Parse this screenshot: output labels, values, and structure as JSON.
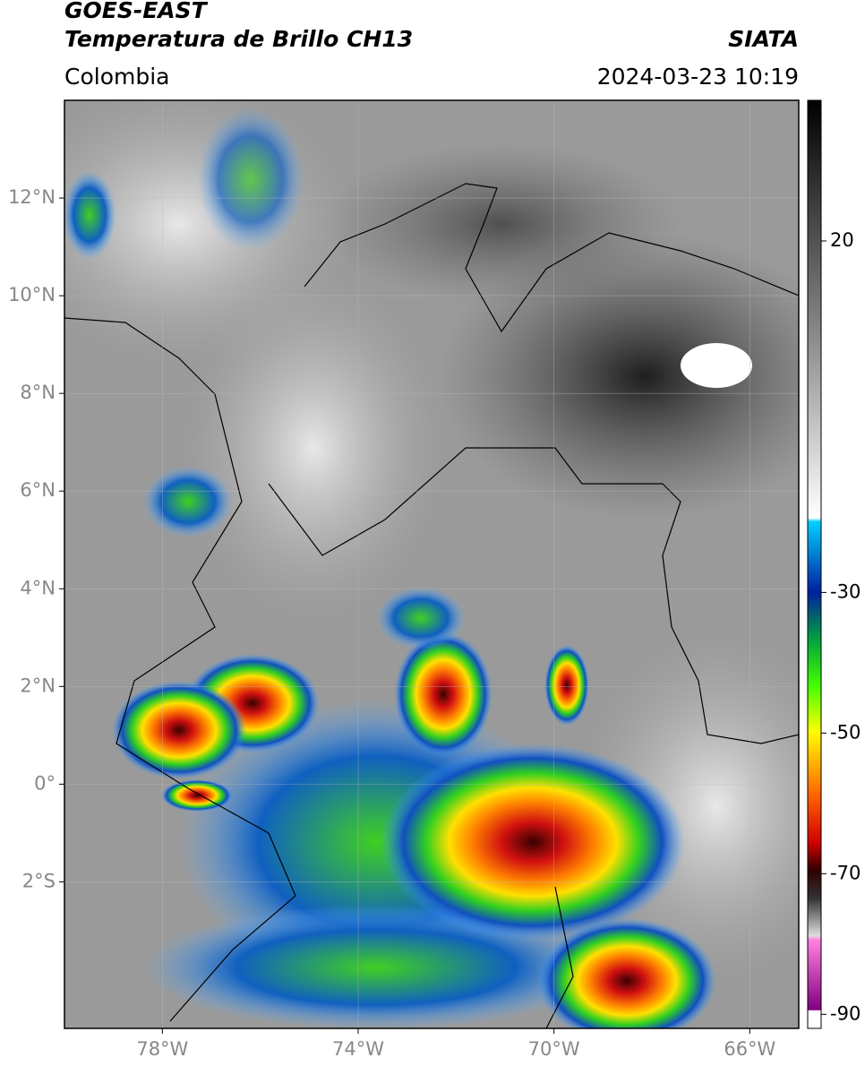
{
  "header": {
    "title": "GOES-EAST",
    "subtitle": "Temperatura de Brillo CH13",
    "source": "SIATA",
    "region": "Colombia",
    "datetime": "2024-03-23 10:19"
  },
  "map": {
    "lonlim": [
      -80,
      -65
    ],
    "latlim": [
      -5,
      14
    ],
    "lat_ticks": [
      {
        "value": 12,
        "label": "12°N"
      },
      {
        "value": 10,
        "label": "10°N"
      },
      {
        "value": 8,
        "label": "8°N"
      },
      {
        "value": 6,
        "label": "6°N"
      },
      {
        "value": 4,
        "label": "4°N"
      },
      {
        "value": 2,
        "label": "2°N"
      },
      {
        "value": 0,
        "label": "0°"
      },
      {
        "value": -2,
        "label": "2°S"
      }
    ],
    "lon_ticks": [
      {
        "value": -78,
        "label": "78°W"
      },
      {
        "value": -74,
        "label": "74°W"
      },
      {
        "value": -70,
        "label": "70°W"
      },
      {
        "value": -66,
        "label": "66°W"
      }
    ]
  },
  "colorbar": {
    "clim": [
      -92,
      40
    ],
    "ticks": [
      20,
      -30,
      -50,
      -70,
      -90
    ]
  }
}
